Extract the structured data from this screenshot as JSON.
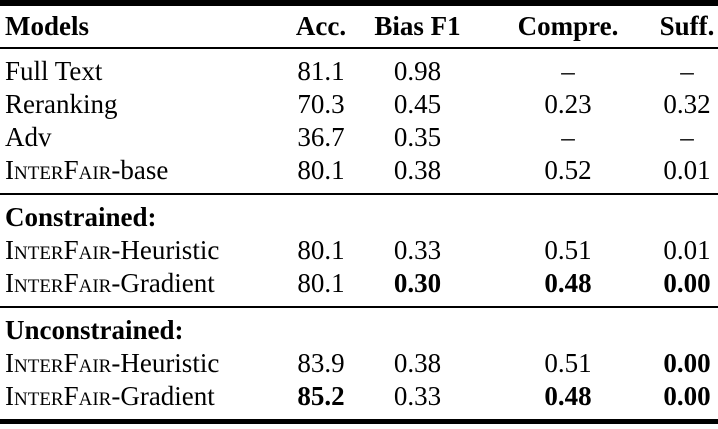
{
  "table": {
    "columns": [
      {
        "label": "Models",
        "key": "models"
      },
      {
        "label": "Acc.",
        "key": "acc"
      },
      {
        "label": "Bias F1",
        "key": "bias-f1"
      },
      {
        "label": "Compre.",
        "key": "compre"
      },
      {
        "label": "Suff.",
        "key": "suff"
      }
    ],
    "dash_glyph": "–",
    "text_color": "#000000",
    "background_color": "#ffffff",
    "groups": [
      {
        "heading": null,
        "rows": [
          {
            "model": {
              "smallcaps": "",
              "rest": "Full Text"
            },
            "cells": [
              {
                "t": "81.1",
                "b": false
              },
              {
                "t": "0.98",
                "b": false
              },
              {
                "t": "–",
                "b": false
              },
              {
                "t": "–",
                "b": false
              }
            ]
          },
          {
            "model": {
              "smallcaps": "",
              "rest": "Reranking"
            },
            "cells": [
              {
                "t": "70.3",
                "b": false
              },
              {
                "t": "0.45",
                "b": false
              },
              {
                "t": "0.23",
                "b": false
              },
              {
                "t": "0.32",
                "b": false
              }
            ]
          },
          {
            "model": {
              "smallcaps": "",
              "rest": "Adv"
            },
            "cells": [
              {
                "t": "36.7",
                "b": false
              },
              {
                "t": "0.35",
                "b": false
              },
              {
                "t": "–",
                "b": false
              },
              {
                "t": "–",
                "b": false
              }
            ]
          },
          {
            "model": {
              "smallcaps": "InterFair",
              "rest": "-base"
            },
            "cells": [
              {
                "t": "80.1",
                "b": false
              },
              {
                "t": "0.38",
                "b": false
              },
              {
                "t": "0.52",
                "b": false
              },
              {
                "t": "0.01",
                "b": false
              }
            ]
          }
        ]
      },
      {
        "heading": "Constrained:",
        "rows": [
          {
            "model": {
              "smallcaps": "InterFair",
              "rest": "-Heuristic"
            },
            "cells": [
              {
                "t": "80.1",
                "b": false
              },
              {
                "t": "0.33",
                "b": false
              },
              {
                "t": "0.51",
                "b": false
              },
              {
                "t": "0.01",
                "b": false
              }
            ]
          },
          {
            "model": {
              "smallcaps": "InterFair",
              "rest": "-Gradient"
            },
            "cells": [
              {
                "t": "80.1",
                "b": false
              },
              {
                "t": "0.30",
                "b": true
              },
              {
                "t": "0.48",
                "b": true
              },
              {
                "t": "0.00",
                "b": true
              }
            ]
          }
        ]
      },
      {
        "heading": "Unconstrained:",
        "rows": [
          {
            "model": {
              "smallcaps": "InterFair",
              "rest": "-Heuristic"
            },
            "cells": [
              {
                "t": "83.9",
                "b": false
              },
              {
                "t": "0.38",
                "b": false
              },
              {
                "t": "0.51",
                "b": false
              },
              {
                "t": "0.00",
                "b": true
              }
            ]
          },
          {
            "model": {
              "smallcaps": "InterFair",
              "rest": "-Gradient"
            },
            "cells": [
              {
                "t": "85.2",
                "b": true
              },
              {
                "t": "0.33",
                "b": false
              },
              {
                "t": "0.48",
                "b": true
              },
              {
                "t": "0.00",
                "b": true
              }
            ]
          }
        ]
      }
    ]
  }
}
